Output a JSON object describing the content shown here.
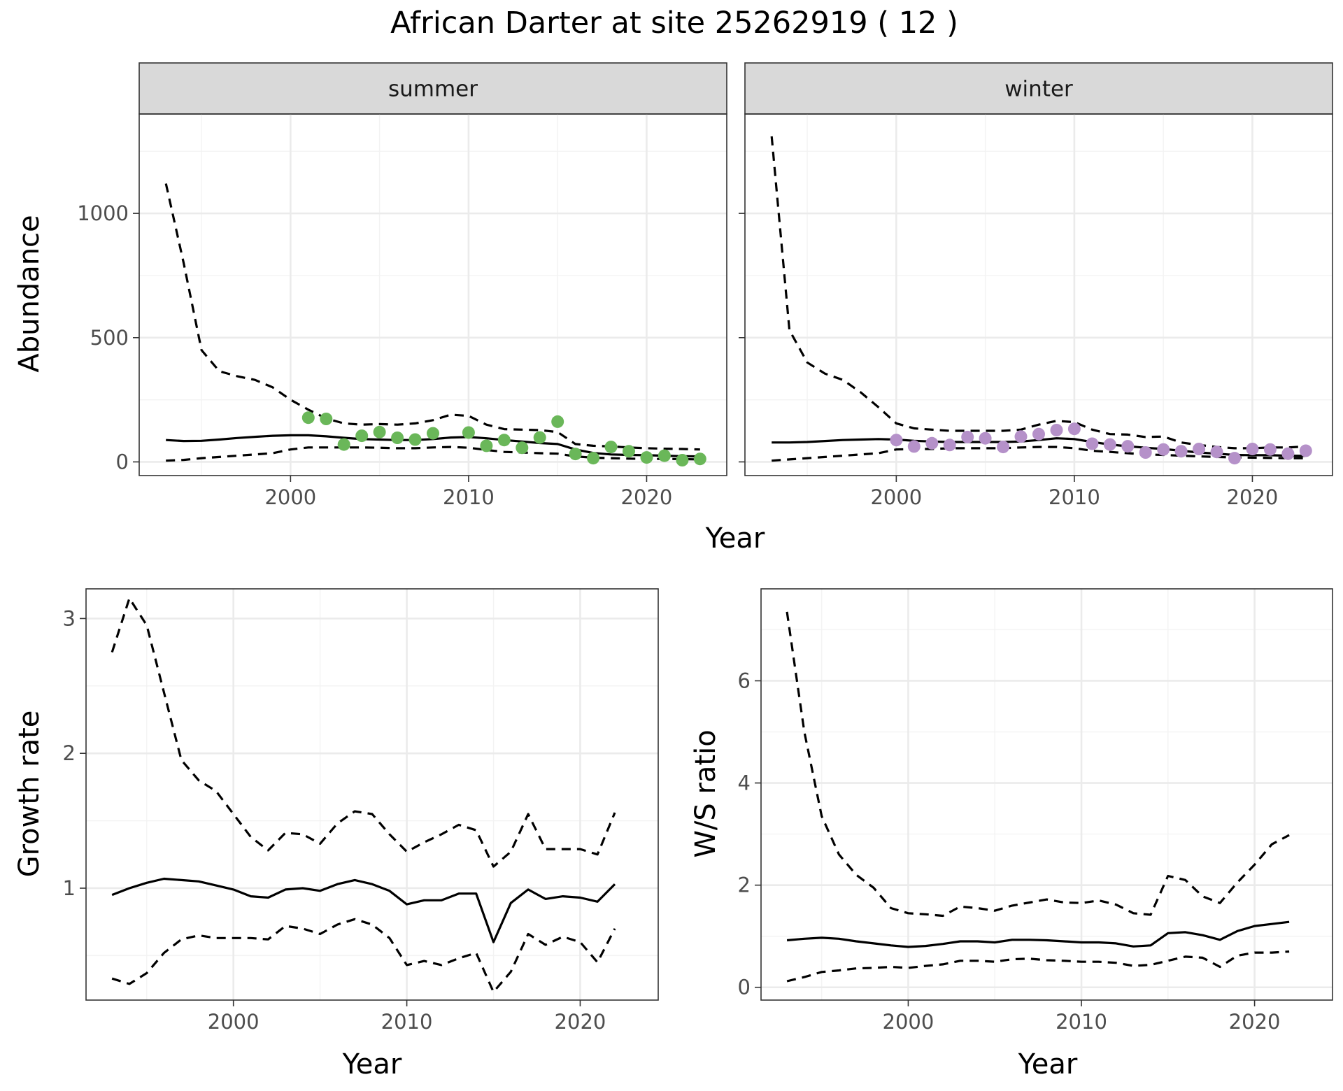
{
  "title": "African Darter at site 25262919 ( 12 )",
  "colors": {
    "summer_points": "#6ab759",
    "winter_points": "#b591c9",
    "lines": "#000000",
    "strip": "#d9d9d9"
  },
  "chart_data": [
    {
      "id": "abundance-summer",
      "type": "line",
      "facet": "summer",
      "xlabel": "Year",
      "ylabel": "Abundance",
      "xlim": [
        1991.5,
        2024.5
      ],
      "ylim": [
        -55,
        1400
      ],
      "xticks": [
        2000,
        2010,
        2020
      ],
      "xminor": [
        1995,
        2005,
        2015
      ],
      "yticks": [
        0,
        500,
        1000
      ],
      "yminor": [
        250,
        750,
        1250
      ],
      "grid": true,
      "x": [
        1993,
        1994,
        1995,
        1996,
        1997,
        1998,
        1999,
        2000,
        2001,
        2002,
        2003,
        2004,
        2005,
        2006,
        2007,
        2008,
        2009,
        2010,
        2011,
        2012,
        2013,
        2014,
        2015,
        2016,
        2017,
        2018,
        2019,
        2020,
        2021,
        2022,
        2023
      ],
      "series": [
        {
          "style": "estimate",
          "values": [
            88,
            84,
            85,
            90,
            96,
            101,
            105,
            107,
            107,
            103,
            97,
            92,
            90,
            88,
            88,
            92,
            98,
            100,
            95,
            88,
            82,
            76,
            72,
            50,
            36,
            30,
            28,
            27,
            25,
            23,
            22
          ]
        },
        {
          "style": "upper",
          "values": [
            1120,
            800,
            450,
            365,
            345,
            330,
            300,
            250,
            210,
            175,
            155,
            150,
            152,
            150,
            155,
            168,
            190,
            185,
            150,
            132,
            130,
            128,
            120,
            72,
            65,
            62,
            58,
            55,
            53,
            52,
            50
          ]
        },
        {
          "style": "lower",
          "values": [
            5,
            8,
            15,
            20,
            25,
            30,
            35,
            50,
            58,
            58,
            58,
            58,
            57,
            55,
            55,
            58,
            60,
            57,
            48,
            40,
            38,
            35,
            33,
            22,
            17,
            15,
            13,
            12,
            12,
            11,
            10
          ]
        },
        {
          "style": "observed",
          "points": [
            [
              2001,
              178
            ],
            [
              2002,
              173
            ],
            [
              2003,
              70
            ],
            [
              2004,
              105
            ],
            [
              2005,
              120
            ],
            [
              2006,
              97
            ],
            [
              2007,
              90
            ],
            [
              2008,
              115
            ],
            [
              2010,
              118
            ],
            [
              2011,
              65
            ],
            [
              2012,
              88
            ],
            [
              2013,
              57
            ],
            [
              2014,
              98
            ],
            [
              2015,
              162
            ],
            [
              2016,
              32
            ],
            [
              2017,
              15
            ],
            [
              2018,
              60
            ],
            [
              2019,
              43
            ],
            [
              2020,
              18
            ],
            [
              2021,
              25
            ],
            [
              2022,
              7
            ],
            [
              2023,
              12
            ]
          ]
        }
      ]
    },
    {
      "id": "abundance-winter",
      "type": "line",
      "facet": "winter",
      "xlabel": "Year",
      "ylabel": "Abundance",
      "xlim": [
        1991.5,
        2024.5
      ],
      "ylim": [
        -55,
        1400
      ],
      "xticks": [
        2000,
        2010,
        2020
      ],
      "xminor": [
        1995,
        2005,
        2015
      ],
      "yticks": [
        0,
        500,
        1000
      ],
      "yminor": [
        250,
        750,
        1250
      ],
      "grid": true,
      "x": [
        1993,
        1994,
        1995,
        1996,
        1997,
        1998,
        1999,
        2000,
        2001,
        2002,
        2003,
        2004,
        2005,
        2006,
        2007,
        2008,
        2009,
        2010,
        2011,
        2012,
        2013,
        2014,
        2015,
        2016,
        2017,
        2018,
        2019,
        2020,
        2021,
        2022,
        2023
      ],
      "series": [
        {
          "style": "estimate",
          "values": [
            78,
            78,
            80,
            84,
            88,
            90,
            92,
            90,
            85,
            82,
            80,
            80,
            80,
            80,
            82,
            88,
            95,
            92,
            80,
            70,
            63,
            57,
            52,
            45,
            38,
            33,
            28,
            27,
            27,
            25,
            24
          ]
        },
        {
          "style": "upper",
          "values": [
            1310,
            530,
            400,
            355,
            330,
            280,
            220,
            155,
            135,
            130,
            125,
            125,
            125,
            125,
            130,
            150,
            165,
            160,
            130,
            112,
            110,
            100,
            102,
            78,
            68,
            60,
            55,
            55,
            58,
            58,
            62
          ]
        },
        {
          "style": "lower",
          "values": [
            5,
            10,
            15,
            20,
            25,
            30,
            35,
            50,
            52,
            52,
            55,
            55,
            55,
            55,
            58,
            60,
            60,
            55,
            45,
            40,
            35,
            30,
            28,
            25,
            22,
            20,
            18,
            17,
            16,
            15,
            15
          ]
        },
        {
          "style": "observed",
          "points": [
            [
              2000,
              88
            ],
            [
              2001,
              62
            ],
            [
              2002,
              75
            ],
            [
              2003,
              68
            ],
            [
              2004,
              100
            ],
            [
              2005,
              95
            ],
            [
              2006,
              60
            ],
            [
              2007,
              102
            ],
            [
              2008,
              112
            ],
            [
              2009,
              128
            ],
            [
              2010,
              133
            ],
            [
              2011,
              73
            ],
            [
              2012,
              70
            ],
            [
              2013,
              63
            ],
            [
              2014,
              38
            ],
            [
              2015,
              50
            ],
            [
              2016,
              43
            ],
            [
              2017,
              52
            ],
            [
              2018,
              40
            ],
            [
              2019,
              15
            ],
            [
              2020,
              52
            ],
            [
              2021,
              50
            ],
            [
              2022,
              33
            ],
            [
              2023,
              45
            ]
          ]
        }
      ]
    },
    {
      "id": "growth-rate",
      "type": "line",
      "xlabel": "Year",
      "ylabel": "Growth rate",
      "xlim": [
        1991.5,
        2024.5
      ],
      "ylim": [
        0.17,
        3.22
      ],
      "xticks": [
        2000,
        2010,
        2020
      ],
      "xminor": [
        1995,
        2005,
        2015
      ],
      "yticks": [
        1,
        2,
        3
      ],
      "yminor": [
        0.5,
        1.5,
        2.5
      ],
      "grid": true,
      "x": [
        1993,
        1994,
        1995,
        1996,
        1997,
        1998,
        1999,
        2000,
        2001,
        2002,
        2003,
        2004,
        2005,
        2006,
        2007,
        2008,
        2009,
        2010,
        2011,
        2012,
        2013,
        2014,
        2015,
        2016,
        2017,
        2018,
        2019,
        2020,
        2021,
        2022
      ],
      "series": [
        {
          "style": "estimate",
          "values": [
            0.95,
            1.0,
            1.04,
            1.07,
            1.06,
            1.05,
            1.02,
            0.99,
            0.94,
            0.93,
            0.99,
            1.0,
            0.98,
            1.03,
            1.06,
            1.03,
            0.98,
            0.88,
            0.91,
            0.91,
            0.96,
            0.96,
            0.6,
            0.89,
            0.99,
            0.92,
            0.94,
            0.93,
            0.9,
            1.03
          ]
        },
        {
          "style": "upper",
          "values": [
            2.75,
            3.15,
            2.95,
            2.45,
            1.95,
            1.8,
            1.72,
            1.55,
            1.38,
            1.28,
            1.41,
            1.4,
            1.33,
            1.48,
            1.57,
            1.55,
            1.4,
            1.27,
            1.34,
            1.4,
            1.47,
            1.43,
            1.16,
            1.27,
            1.55,
            1.29,
            1.29,
            1.29,
            1.25,
            1.56
          ]
        },
        {
          "style": "lower",
          "values": [
            0.33,
            0.29,
            0.37,
            0.52,
            0.62,
            0.65,
            0.63,
            0.63,
            0.63,
            0.62,
            0.72,
            0.7,
            0.66,
            0.73,
            0.77,
            0.73,
            0.63,
            0.43,
            0.46,
            0.43,
            0.48,
            0.52,
            0.23,
            0.38,
            0.66,
            0.58,
            0.64,
            0.6,
            0.45,
            0.7
          ]
        }
      ]
    },
    {
      "id": "ws-ratio",
      "type": "line",
      "xlabel": "Year",
      "ylabel": "W/S ratio",
      "xlim": [
        1991.5,
        2024.5
      ],
      "ylim": [
        -0.25,
        7.8
      ],
      "xticks": [
        2000,
        2010,
        2020
      ],
      "xminor": [
        1995,
        2005,
        2015
      ],
      "yticks": [
        0,
        2,
        4,
        6
      ],
      "yminor": [
        1,
        3,
        5,
        7
      ],
      "grid": true,
      "x": [
        1993,
        1994,
        1995,
        1996,
        1997,
        1998,
        1999,
        2000,
        2001,
        2002,
        2003,
        2004,
        2005,
        2006,
        2007,
        2008,
        2009,
        2010,
        2011,
        2012,
        2013,
        2014,
        2015,
        2016,
        2017,
        2018,
        2019,
        2020,
        2021,
        2022
      ],
      "series": [
        {
          "style": "estimate",
          "values": [
            0.92,
            0.95,
            0.97,
            0.95,
            0.9,
            0.86,
            0.82,
            0.79,
            0.81,
            0.85,
            0.9,
            0.9,
            0.88,
            0.93,
            0.93,
            0.92,
            0.9,
            0.88,
            0.88,
            0.86,
            0.8,
            0.82,
            1.06,
            1.08,
            1.02,
            0.93,
            1.1,
            1.2,
            1.24,
            1.28
          ]
        },
        {
          "style": "upper",
          "values": [
            7.35,
            5.0,
            3.35,
            2.6,
            2.2,
            1.95,
            1.55,
            1.45,
            1.43,
            1.4,
            1.58,
            1.55,
            1.5,
            1.6,
            1.66,
            1.72,
            1.66,
            1.65,
            1.7,
            1.62,
            1.45,
            1.42,
            2.18,
            2.1,
            1.78,
            1.65,
            2.05,
            2.4,
            2.8,
            2.98
          ]
        },
        {
          "style": "lower",
          "values": [
            0.12,
            0.2,
            0.3,
            0.33,
            0.37,
            0.38,
            0.4,
            0.38,
            0.42,
            0.45,
            0.52,
            0.52,
            0.5,
            0.55,
            0.56,
            0.53,
            0.52,
            0.5,
            0.5,
            0.48,
            0.42,
            0.44,
            0.52,
            0.6,
            0.58,
            0.4,
            0.62,
            0.68,
            0.68,
            0.7
          ]
        }
      ]
    }
  ]
}
